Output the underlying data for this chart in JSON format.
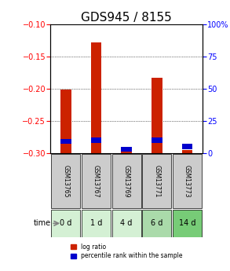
{
  "title": "GDS945 / 8155",
  "categories": [
    "GSM13765",
    "GSM13767",
    "GSM13769",
    "GSM13771",
    "GSM13773"
  ],
  "time_labels": [
    "0 d",
    "1 d",
    "4 d",
    "6 d",
    "14 d"
  ],
  "log_ratio": [
    -0.201,
    -0.128,
    -0.298,
    -0.183,
    -0.295
  ],
  "percentile_rank": [
    7,
    8,
    1,
    8,
    3
  ],
  "ylim_left": [
    -0.3,
    -0.1
  ],
  "ylim_right": [
    0,
    100
  ],
  "yticks_left": [
    -0.3,
    -0.25,
    -0.2,
    -0.15,
    -0.1
  ],
  "yticks_right": [
    0,
    25,
    50,
    75,
    100
  ],
  "bar_color": "#cc2200",
  "blue_color": "#0000cc",
  "grid_color": "#000000",
  "bg_color": "#ffffff",
  "time_bg_colors": [
    "#d4f0d4",
    "#d4f0d4",
    "#d4f0d4",
    "#aadaaa",
    "#77cc77"
  ],
  "gsm_bg_color": "#cccccc",
  "title_fontsize": 11,
  "tick_fontsize": 7,
  "label_fontsize": 8
}
